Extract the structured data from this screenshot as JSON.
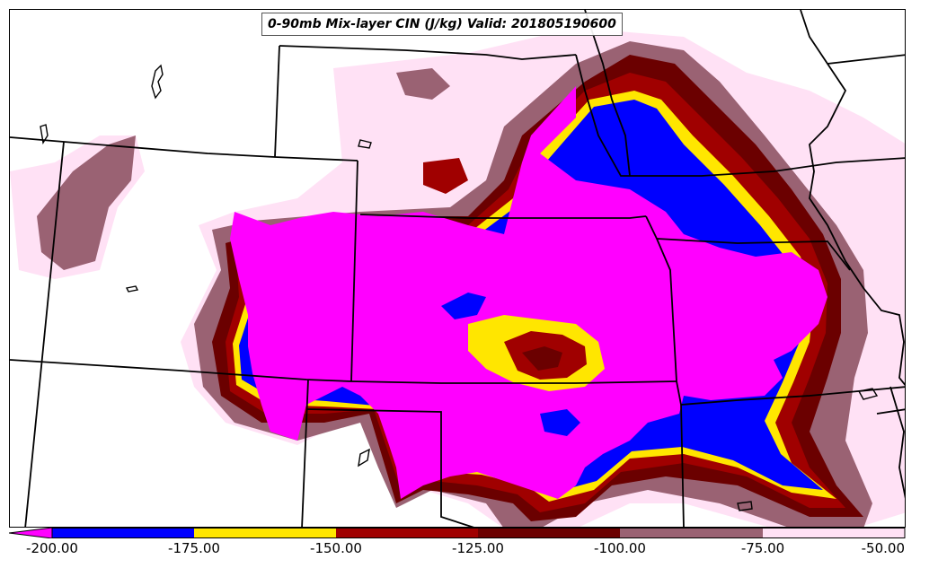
{
  "title": "0-90mb Mix-layer CIN (J/kg) Valid: 201805190600",
  "colorbar": {
    "levels": [
      {
        "range": "< -200",
        "color": "#ff00ff"
      },
      {
        "range": "-200 to -175",
        "color": "#0000ff"
      },
      {
        "range": "-175 to -150",
        "color": "#ffe600"
      },
      {
        "range": "-150 to -125",
        "color": "#a00000"
      },
      {
        "range": "-125 to -100",
        "color": "#6b0000"
      },
      {
        "range": "-100 to -75",
        "color": "#9a6273"
      },
      {
        "range": "-75 to -50",
        "color": "#ffe1f5"
      }
    ],
    "ticks": [
      "-200.00",
      "-175.00",
      "-150.00",
      "-125.00",
      "-100.00",
      "-75.00",
      "-50.00"
    ],
    "extend": "min"
  },
  "map": {
    "field": "0-90mb Mix-layer CIN",
    "units": "J/kg",
    "valid": "201805190600",
    "background": "#ffffff",
    "boundary_color": "#000000"
  }
}
